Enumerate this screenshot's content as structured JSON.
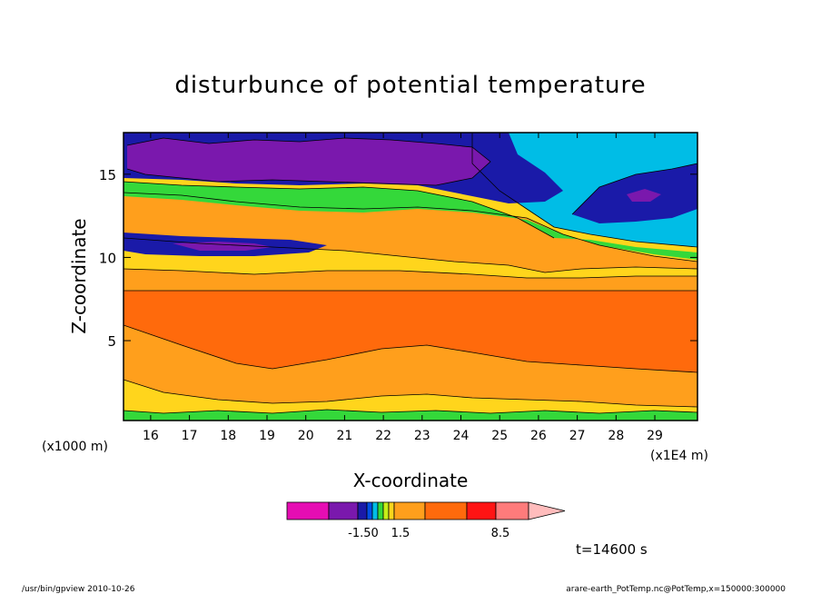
{
  "chart_data": {
    "type": "contour",
    "title": "disturbunce of potential temperature",
    "xlabel": "X-coordinate",
    "ylabel": "Z-coordinate",
    "x_unit_left": "(x1000 m)",
    "x_unit_right": "(x1E4 m)",
    "x_ticks": [
      "16",
      "17",
      "18",
      "19",
      "20",
      "21",
      "22",
      "23",
      "24",
      "25",
      "26",
      "27",
      "28",
      "29"
    ],
    "x_tick_values": [
      16,
      17,
      18,
      19,
      20,
      21,
      22,
      23,
      24,
      25,
      26,
      27,
      28,
      29
    ],
    "xlim": [
      15.3,
      30.1
    ],
    "y_ticks": [
      "5",
      "10",
      "15"
    ],
    "y_tick_values": [
      5,
      10,
      15
    ],
    "ylim": [
      0.2,
      17.5
    ],
    "colorbar": {
      "labels": [
        "-1.50",
        "1.5",
        "8.5"
      ],
      "colors": [
        "#e60db3",
        "#7a18ad",
        "#1a1aa8",
        "#0050e6",
        "#00bde6",
        "#34d83a",
        "#c6ee18",
        "#ffd51c",
        "#ff9f1c",
        "#ff6a0c",
        "#ff1414",
        "#ff7b7b",
        "#ffbcbc"
      ]
    },
    "levels": [
      {
        "name": "deep-negative",
        "color": "#7a18ad",
        "region": "z 15.5-17.3, x 15.3-24"
      },
      {
        "name": "negative",
        "color": "#1a1aa8",
        "region": "upper layer z 14-17.5"
      },
      {
        "name": "near-zero",
        "color": "#00bde6",
        "region": "upper right z 11-17.5"
      },
      {
        "name": "small-positive",
        "color": "#34d83a",
        "region": "z 11-14"
      },
      {
        "name": "positive",
        "color": "#ffd51c",
        "region": "z 0.5-3 and z 9-11"
      },
      {
        "name": "mid-positive",
        "color": "#ff9f1c",
        "region": "z 8-14 and near surface"
      },
      {
        "name": "large-positive",
        "color": "#ff6a0c",
        "region": "z 3-8"
      }
    ],
    "annotation": "t=14600 s",
    "footer_left": "/usr/bin/gpview   2010-10-26",
    "footer_right": "arare-earth_PotTemp.nc@PotTemp,x=150000:300000"
  }
}
